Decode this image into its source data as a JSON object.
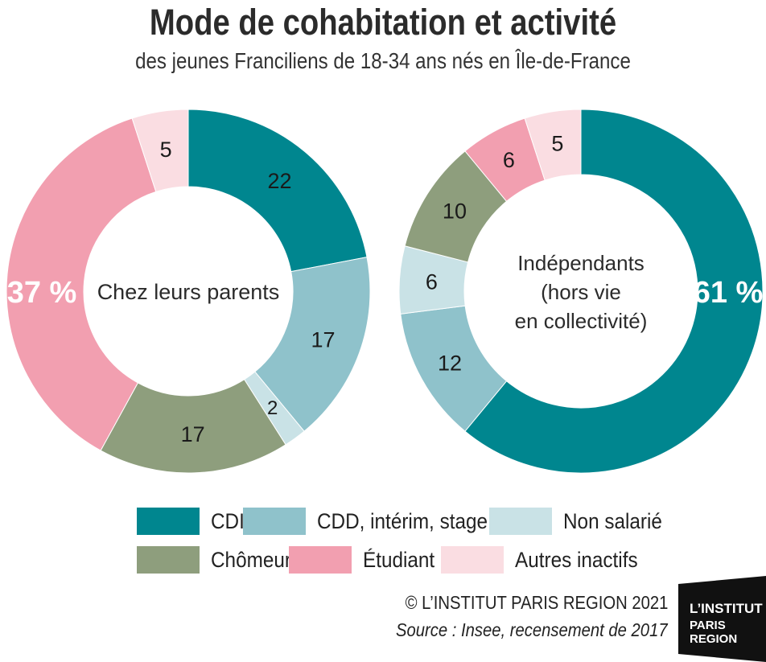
{
  "title": "Mode de cohabitation et activité",
  "subtitle": "des jeunes Franciliens de 18-34 ans nés en Île-de-France",
  "colors": {
    "cdi": "#00868F",
    "cdd": "#8FC2CB",
    "non_salarie": "#C9E2E6",
    "chomeur": "#8E9E7D",
    "etudiant": "#F29FB0",
    "autres": "#FADDE2"
  },
  "chart_data": [
    {
      "type": "pie",
      "variant": "donut",
      "center_label": "Chez leurs parents",
      "share_label": "37 %",
      "slices": [
        {
          "category": "CDI",
          "value": 22,
          "label": "22"
        },
        {
          "category": "CDD, intérim, stage",
          "value": 17,
          "label": "17"
        },
        {
          "category": "Non salarié",
          "value": 2,
          "label": "2"
        },
        {
          "category": "Chômeur",
          "value": 17,
          "label": "17"
        },
        {
          "category": "Étudiant",
          "value": 37,
          "label": ""
        },
        {
          "category": "Autres inactifs",
          "value": 5,
          "label": "5"
        }
      ]
    },
    {
      "type": "pie",
      "variant": "donut",
      "center_label": "Indépendants (hors vie en collectivité)",
      "center_lines": [
        "Indépendants",
        "(hors vie",
        "en collectivité)"
      ],
      "share_label": "61 %",
      "slices": [
        {
          "category": "CDI",
          "value": 61,
          "label": ""
        },
        {
          "category": "CDD, intérim, stage",
          "value": 12,
          "label": "12"
        },
        {
          "category": "Non salarié",
          "value": 6,
          "label": "6"
        },
        {
          "category": "Chômeur",
          "value": 10,
          "label": "10"
        },
        {
          "category": "Étudiant",
          "value": 6,
          "label": "6"
        },
        {
          "category": "Autres inactifs",
          "value": 5,
          "label": "5"
        }
      ]
    }
  ],
  "legend": [
    {
      "label": "CDI",
      "color": "#00868F"
    },
    {
      "label": "CDD, intérim, stage",
      "color": "#8FC2CB"
    },
    {
      "label": "Non salarié",
      "color": "#C9E2E6"
    },
    {
      "label": "Chômeur",
      "color": "#8E9E7D"
    },
    {
      "label": "Étudiant",
      "color": "#F29FB0"
    },
    {
      "label": "Autres inactifs",
      "color": "#FADDE2"
    }
  ],
  "footer": {
    "copyright": "© L’INSTITUT PARIS REGION 2021",
    "source": "Source : Insee, recensement de 2017"
  },
  "logo": {
    "line1": "L’INSTITUT",
    "line2": "PARIS",
    "line3": "REGION"
  }
}
